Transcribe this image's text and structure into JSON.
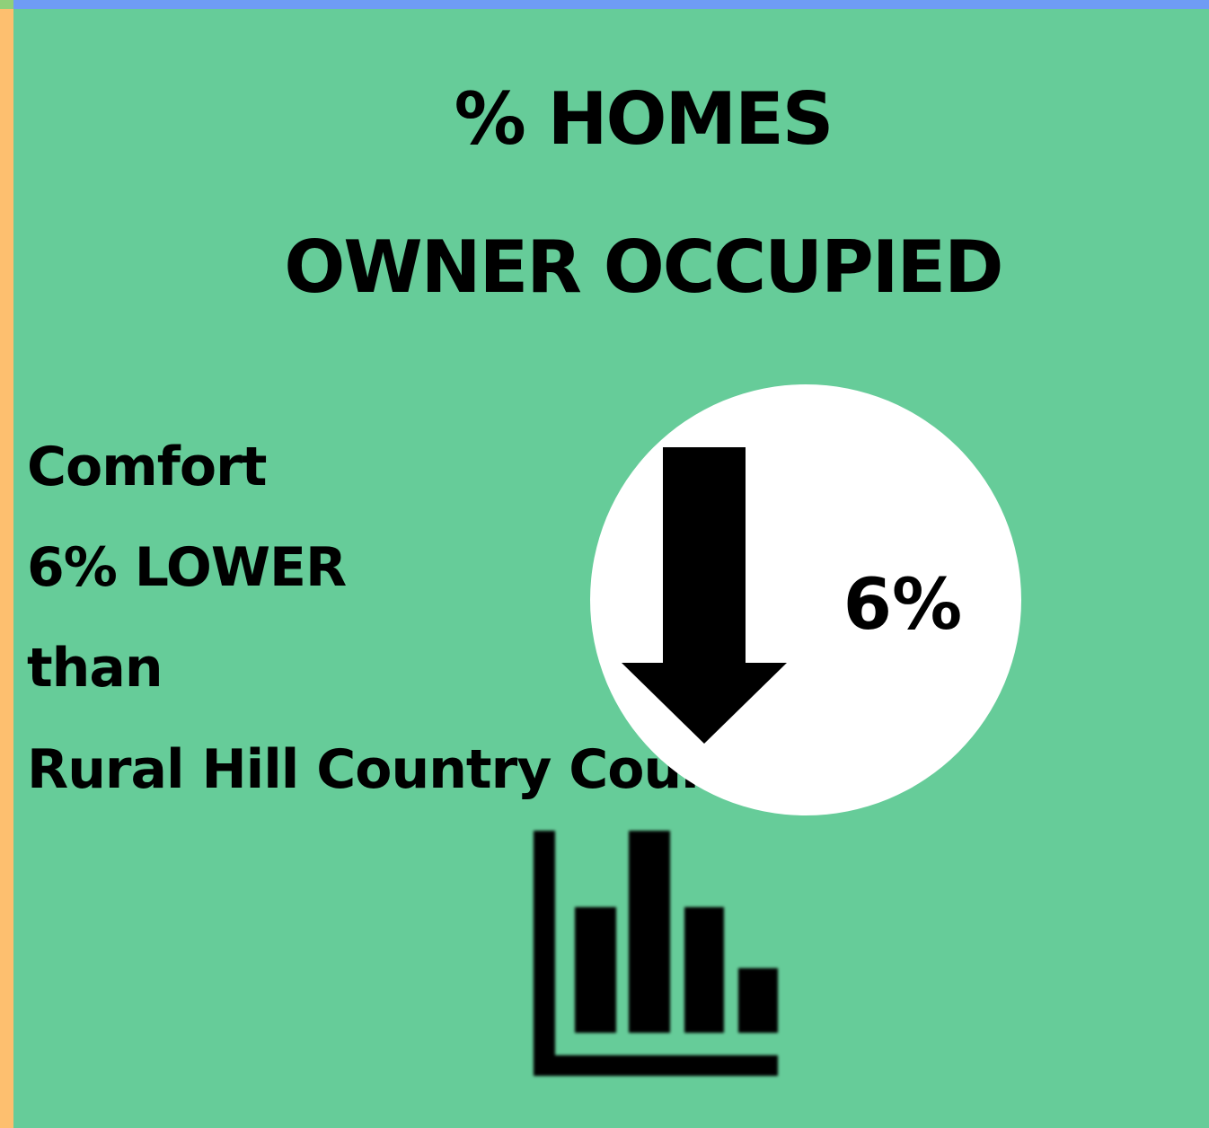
{
  "header": {
    "title": [
      "% HOMES",
      "OWNER OCCUPIED"
    ]
  },
  "body": {
    "lines": [
      "Comfort",
      "6% LOWER",
      "than",
      "Rural Hill Country Counties"
    ]
  },
  "badge": {
    "label": "6%"
  }
}
